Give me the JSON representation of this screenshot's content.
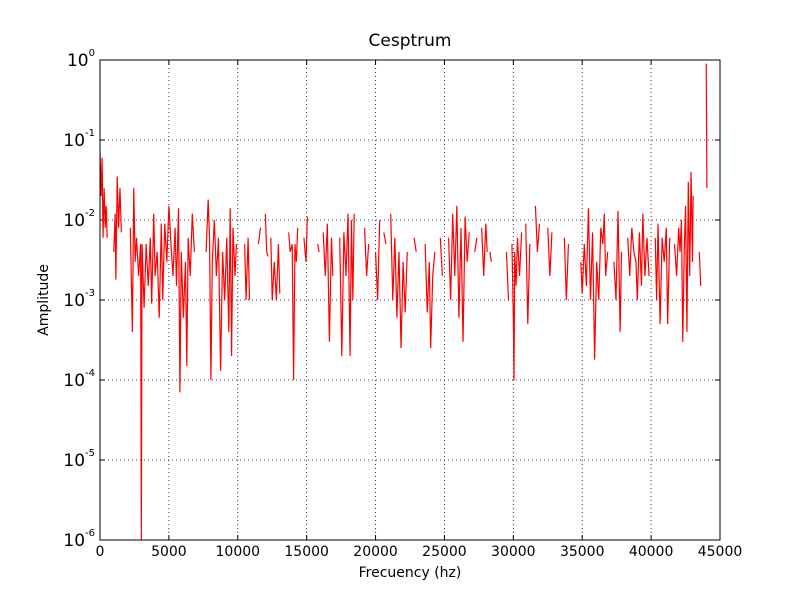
{
  "chart_data": {
    "type": "line",
    "title": "Cesptrum",
    "x_label": "Frecuency (hz)",
    "y_label": "Amplitude",
    "y_scale": "log",
    "grid": true,
    "xlim": [
      0,
      45000
    ],
    "xticks": [
      0,
      5000,
      10000,
      15000,
      20000,
      25000,
      30000,
      35000,
      40000,
      45000
    ],
    "ylim": [
      1e-06,
      1
    ],
    "yticks": [
      {
        "value": 1e-06,
        "label": "10^-6"
      },
      {
        "value": 1e-05,
        "label": "10^-5"
      },
      {
        "value": 0.0001,
        "label": "10^-4"
      },
      {
        "value": 0.001,
        "label": "10^-3"
      },
      {
        "value": 0.01,
        "label": "10^-2"
      },
      {
        "value": 0.1,
        "label": "10^-1"
      },
      {
        "value": 1,
        "label": "10^0"
      }
    ],
    "series": [
      {
        "color": "#ff0000",
        "x": [
          0,
          80,
          150,
          220,
          300,
          380,
          450,
          520,
          700,
          1000,
          1100,
          1150,
          1250,
          1350,
          1450,
          1550,
          1900,
          2200,
          2350,
          2450,
          2550,
          2650,
          2800,
          2950,
          3000,
          3050,
          3200,
          3350,
          3500,
          3650,
          3750,
          3900,
          4000,
          4150,
          4300,
          4450,
          4550,
          4700,
          4850,
          5000,
          5150,
          5300,
          5450,
          5550,
          5700,
          5800,
          5900,
          6050,
          6200,
          6300,
          6400,
          6550,
          6700,
          6850,
          7300,
          7700,
          7850,
          7950,
          8050,
          8150,
          8300,
          8450,
          8600,
          8750,
          8900,
          9050,
          9200,
          9350,
          9450,
          9550,
          9650,
          9800,
          9900,
          10200,
          10500,
          10600,
          10750,
          10850,
          11200,
          11500,
          11650,
          11800,
          12000,
          12100,
          12200,
          12300,
          12400,
          12500,
          12650,
          12800,
          12950,
          13050,
          13400,
          13700,
          13800,
          13950,
          14050,
          14150,
          14250,
          14350,
          14600,
          14800,
          14950,
          15050,
          15400,
          15800,
          15900,
          16050,
          16200,
          16350,
          16500,
          16650,
          16800,
          16900,
          17200,
          17400,
          17550,
          17700,
          17850,
          18000,
          18150,
          18250,
          18350,
          18450,
          18600,
          18800,
          19000,
          19200,
          19350,
          19500,
          19750,
          20000,
          20150,
          20300,
          20450,
          20600,
          20750,
          20900,
          21100,
          21250,
          21400,
          21550,
          21700,
          21850,
          22000,
          22150,
          22300,
          22550,
          22800,
          22950,
          23300,
          23600,
          23750,
          23900,
          24000,
          24150,
          24300,
          24500,
          24700,
          24850,
          25100,
          25300,
          25450,
          25600,
          25750,
          25900,
          26050,
          26200,
          26350,
          26500,
          26650,
          26800,
          27000,
          27200,
          27350,
          27500,
          27700,
          27850,
          28000,
          28100,
          28200,
          28300,
          28400,
          28650,
          28900,
          29200,
          29500,
          29650,
          29800,
          29900,
          30000,
          30050,
          30100,
          30200,
          30300,
          30450,
          30600,
          30750,
          30900,
          31050,
          31200,
          31400,
          31600,
          31750,
          31900,
          32200,
          32500,
          32650,
          32800,
          33200,
          33700,
          33850,
          34000,
          34450,
          34900,
          35000,
          35150,
          35300,
          35450,
          35600,
          35750,
          35900,
          36050,
          36200,
          36350,
          36500,
          36600,
          36700,
          36850,
          37100,
          37300,
          37450,
          37600,
          37750,
          37850,
          38100,
          38300,
          38450,
          38600,
          38750,
          38900,
          39000,
          39150,
          39300,
          39400,
          39550,
          39700,
          39850,
          40100,
          40300,
          40400,
          40500,
          40650,
          40800,
          40950,
          41100,
          41200,
          41350,
          41500,
          41700,
          41850,
          42000,
          42100,
          42200,
          42300,
          42400,
          42500,
          42600,
          42700,
          42800,
          42900,
          43000,
          43050,
          43300,
          43500,
          43600,
          43800,
          44000,
          44050
        ],
        "values": [
          0.07,
          0.02,
          0.06,
          0.006,
          0.025,
          0.008,
          0.015,
          0.006,
          null,
          0.004,
          0.012,
          0.0018,
          0.035,
          0.008,
          0.025,
          0.007,
          null,
          0.008,
          0.0004,
          0.025,
          0.003,
          0.006,
          0.002,
          0.005,
          1e-06,
          0.005,
          0.0008,
          0.005,
          0.0015,
          0.006,
          0.0009,
          0.012,
          0.002,
          0.004,
          0.0006,
          0.009,
          0.001,
          0.009,
          0.003,
          0.015,
          0.005,
          0.002,
          0.008,
          0.0015,
          0.014,
          7e-05,
          0.004,
          0.0006,
          0.003,
          0.00015,
          0.006,
          0.002,
          0.012,
          0.004,
          null,
          0.004,
          0.018,
          0.006,
          0.0001,
          0.003,
          0.01,
          0.002,
          0.006,
          0.00013,
          0.004,
          0.001,
          0.006,
          0.0004,
          0.014,
          0.0002,
          0.008,
          0.002,
          0.005,
          null,
          0.005,
          0.001,
          0.006,
          0.001,
          null,
          0.005,
          0.008,
          null,
          0.012,
          0.004,
          0.0035,
          null,
          0.006,
          0.001,
          0.003,
          0.001,
          0.005,
          0.0012,
          null,
          0.007,
          0.004,
          0.005,
          0.0001,
          0.005,
          0.003,
          0.008,
          null,
          0.006,
          0.003,
          0.011,
          null,
          0.005,
          0.004,
          null,
          0.007,
          0.002,
          0.009,
          0.0003,
          0.006,
          0.002,
          null,
          0.006,
          0.0002,
          0.007,
          0.002,
          0.012,
          0.0002,
          0.01,
          0.001,
          0.012,
          null,
          0.006,
          null,
          0.008,
          0.002,
          0.005,
          null,
          0.004,
          0.001,
          0.01,
          null,
          0.007,
          0.005,
          null,
          0.012,
          0.001,
          0.006,
          0.0006,
          0.004,
          0.00025,
          0.003,
          0.0007,
          0.004,
          null,
          0.006,
          0.004,
          null,
          0.005,
          0.0007,
          0.003,
          0.00025,
          0.002,
          0.004,
          null,
          0.006,
          0.002,
          null,
          0.006,
          0.001,
          0.012,
          0.002,
          0.015,
          0.0006,
          0.008,
          0.0003,
          0.011,
          0.003,
          0.007,
          null,
          0.004,
          0.006,
          null,
          0.008,
          0.002,
          0.009,
          0.004,
          null,
          0.004,
          0.003,
          null,
          0.013,
          null,
          0.004,
          0.001,
          null,
          0.005,
          0.0006,
          0.0001,
          0.004,
          0.0015,
          0.006,
          0.002,
          0.007,
          null,
          0.009,
          0.0005,
          0.005,
          null,
          0.015,
          0.004,
          0.009,
          null,
          0.008,
          0.002,
          0.007,
          null,
          0.006,
          0.001,
          0.005,
          null,
          0.003,
          0.0012,
          0.005,
          0.0015,
          0.014,
          0.001,
          0.007,
          0.00018,
          0.003,
          0.001,
          0.008,
          0.005,
          0.012,
          0.002,
          0.004,
          null,
          0.003,
          0.001,
          0.013,
          0.0004,
          0.004,
          null,
          0.006,
          0.002,
          0.008,
          0.004,
          0.003,
          0.001,
          0.007,
          0.0015,
          0.012,
          0.002,
          0.006,
          0.002,
          null,
          0.006,
          0.001,
          0.009,
          0.0005,
          0.006,
          0.003,
          0.008,
          0.0005,
          0.006,
          null,
          0.005,
          0.002,
          0.008,
          0.004,
          0.01,
          0.0003,
          0.004,
          0.015,
          0.0004,
          0.03,
          0.002,
          0.04,
          0.003,
          0.02,
          null,
          0.004,
          0.0015,
          null,
          0.9,
          0.025
        ]
      }
    ]
  }
}
